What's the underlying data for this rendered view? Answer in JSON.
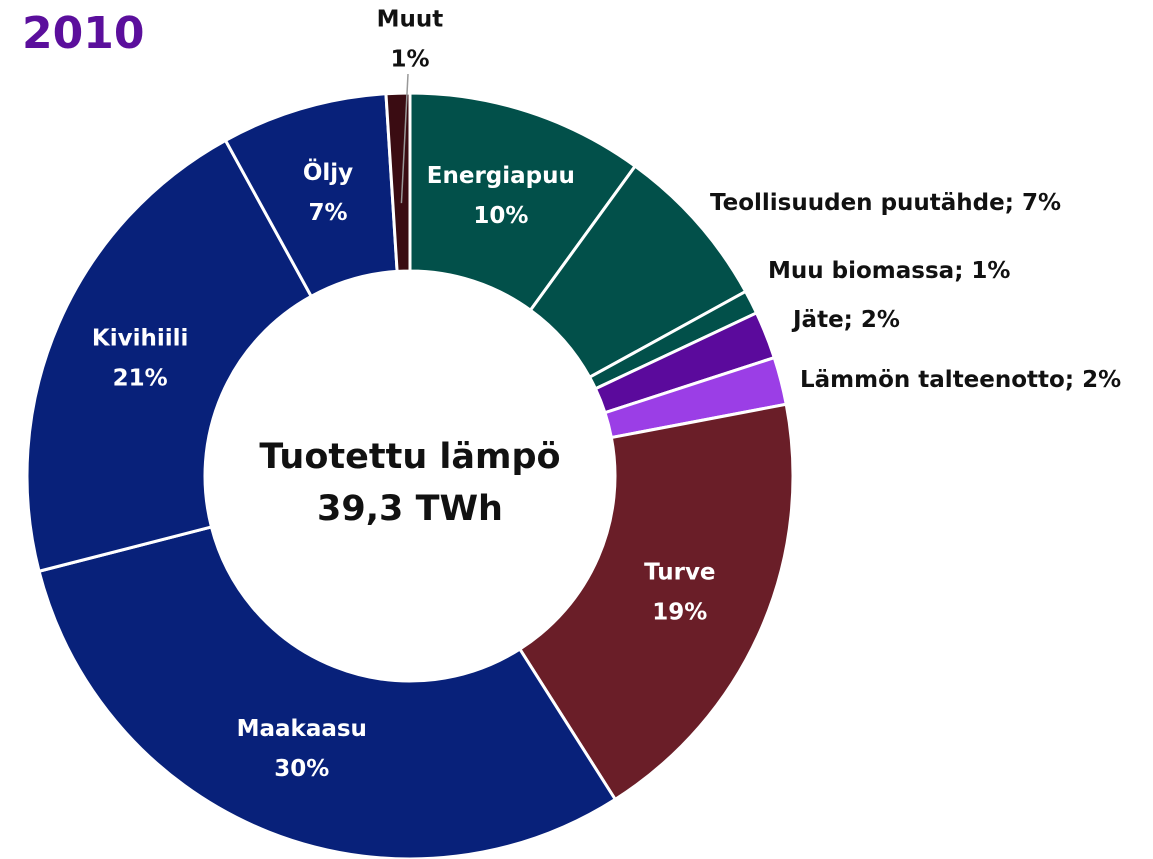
{
  "chart_data": {
    "type": "donut",
    "title": "2010",
    "center_label": [
      "Tuotettu lämpö",
      "39,3 TWh"
    ],
    "categories": [
      "Energiapuu",
      "Teollisuuden puutähde",
      "Muu biomassa",
      "Jäte",
      "Lämmön talteenotto",
      "Turve",
      "Maakaasu",
      "Kivihiili",
      "Öljy",
      "Muut"
    ],
    "values": [
      10,
      7,
      1,
      2,
      2,
      19,
      30,
      21,
      7,
      1
    ],
    "value_labels": [
      "10%",
      "7%",
      "1%",
      "2%",
      "2%",
      "19%",
      "30%",
      "21%",
      "7%",
      "1%"
    ],
    "label_separator": "; ",
    "colors": [
      "#02504a",
      "#02504a",
      "#02504a",
      "#5b0a9c",
      "#9b3ee6",
      "#6a1e28",
      "#08217a",
      "#08217a",
      "#08217a",
      "#3a0c12"
    ]
  }
}
